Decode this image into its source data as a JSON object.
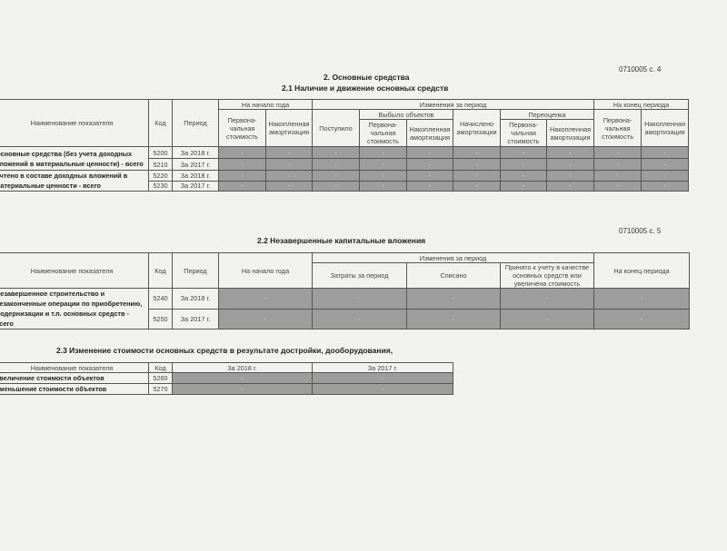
{
  "s21": {
    "code": "0710005 с. 4",
    "title": "2. Основные средства",
    "subtitle": "2.1 Наличие и движение основных средств",
    "headers": {
      "name": "Наименование показателя",
      "code": "Код",
      "period": "Период",
      "start": "На начало года",
      "changes": "Изменения за период",
      "end": "На конец периода",
      "retired": "Выбыло объектов",
      "revaluation": "Переоценка",
      "initial": "Первона-чальная стоимость",
      "depr": "Накопленная амортизация",
      "received": "Поступило",
      "charged": "Начислено амортизации"
    },
    "rows": [
      {
        "name": "Основные средства (без учета доходных вложений в материальные ценности) - всего",
        "code": "5200",
        "period": "За 2018 г.",
        "values": [
          "-",
          "-",
          "-",
          "-",
          "-",
          "-",
          "-",
          "-",
          "-",
          "-"
        ]
      },
      {
        "name": "",
        "code": "5210",
        "period": "За 2017 г.",
        "values": [
          "-",
          "-",
          "-",
          "-",
          "-",
          "-",
          "-",
          "-",
          "-",
          "-"
        ]
      },
      {
        "name": "Учтено в составе доходных вложений в материальные ценности - всего",
        "code": "5220",
        "period": "За 2018 г.",
        "values": [
          "-",
          "-",
          "-",
          "-",
          "-",
          "-",
          "-",
          "-",
          "-",
          "-"
        ]
      },
      {
        "name": "",
        "code": "5230",
        "period": "За 2017 г.",
        "values": [
          "-",
          "-",
          "-",
          "-",
          "-",
          "-",
          "-",
          "-",
          "-",
          "-"
        ]
      }
    ]
  },
  "s22": {
    "code": "0710005 с. 5",
    "title": "2.2 Незавершенные капитальные вложения",
    "headers": {
      "name": "Наименование показателя",
      "code": "Код",
      "period": "Период",
      "start": "На начало года",
      "changes": "Изменения за период",
      "costs": "Затраты за период",
      "written_off": "Списано",
      "accepted": "Принято к учету в качестве основных средств или увеличена стоимость",
      "end": "На конец периода"
    },
    "row_name": "Незавершенное строительство и незаконченные операции по приобретению, модернизации и т.п. основных средств - всего",
    "rows": [
      {
        "code": "5240",
        "period": "За 2018 г.",
        "values": [
          "-",
          "-",
          "-",
          "-",
          "-"
        ]
      },
      {
        "code": "5250",
        "period": "За 2017 г.",
        "values": [
          "-",
          "-",
          "-",
          "-",
          "-"
        ]
      }
    ]
  },
  "s23": {
    "title": "2.3 Изменение стоимости основных средств в результате достройки, дооборудования,",
    "headers": {
      "name": "Наименование показателя",
      "code": "Код",
      "y2018": "За 2018 г.",
      "y2017": "За 2017 г."
    },
    "rows": [
      {
        "name": "Увеличение стоимости объектов",
        "code": "5260",
        "values": [
          "-",
          "-"
        ]
      },
      {
        "name": "Уменьшение стоимости объектов",
        "code": "5270",
        "values": [
          "-",
          "-"
        ]
      }
    ]
  }
}
